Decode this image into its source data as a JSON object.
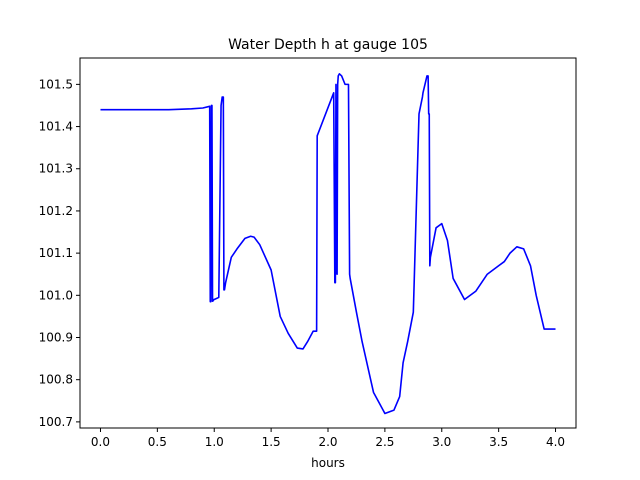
{
  "chart_data": {
    "type": "line",
    "title": "Water Depth h at gauge 105",
    "xlabel": "hours",
    "ylabel": "",
    "xlim": [
      -0.18,
      4.18
    ],
    "ylim": [
      100.6855,
      101.5625
    ],
    "xticks": [
      0.0,
      0.5,
      1.0,
      1.5,
      2.0,
      2.5,
      3.0,
      3.5,
      4.0
    ],
    "xtick_labels": [
      "0.0",
      "0.5",
      "1.0",
      "1.5",
      "2.0",
      "2.5",
      "3.0",
      "3.5",
      "4.0"
    ],
    "yticks": [
      100.7,
      100.8,
      100.9,
      101.0,
      101.1,
      101.2,
      101.3,
      101.4,
      101.5
    ],
    "ytick_labels": [
      "100.7",
      "100.8",
      "100.9",
      "101.0",
      "101.1",
      "101.2",
      "101.3",
      "101.4",
      "101.5"
    ],
    "grid": false,
    "legend": "none",
    "line_color": "#0000ff",
    "series": [
      {
        "x": [
          0.0,
          0.2,
          0.4,
          0.6,
          0.8,
          0.9,
          0.96,
          0.965,
          0.97,
          0.975,
          0.98,
          0.985,
          0.99,
          0.995,
          1.0,
          1.04,
          1.06,
          1.065,
          1.07,
          1.08,
          1.085,
          1.09,
          1.1,
          1.15,
          1.2,
          1.27,
          1.32,
          1.35,
          1.4,
          1.5,
          1.58,
          1.65,
          1.73,
          1.78,
          1.82,
          1.87,
          1.9,
          1.905,
          2.05,
          2.06,
          2.065,
          2.07,
          2.075,
          2.08,
          2.085,
          2.09,
          2.1,
          2.12,
          2.15,
          2.18,
          2.19,
          2.195,
          2.25,
          2.3,
          2.4,
          2.5,
          2.58,
          2.63,
          2.66,
          2.7,
          2.75,
          2.8,
          2.83,
          2.835,
          2.87,
          2.88,
          2.885,
          2.89,
          2.895,
          2.9,
          2.95,
          3.0,
          3.05,
          3.1,
          3.2,
          3.3,
          3.4,
          3.5,
          3.55,
          3.6,
          3.66,
          3.72,
          3.78,
          3.83,
          3.9,
          4.0
        ],
        "y": [
          101.44,
          101.44,
          101.44,
          101.44,
          101.442,
          101.444,
          101.448,
          100.985,
          100.985,
          101.45,
          101.45,
          100.986,
          100.987,
          100.99,
          100.99,
          100.995,
          101.45,
          101.46,
          101.47,
          101.47,
          101.013,
          101.013,
          101.03,
          101.09,
          101.11,
          101.135,
          101.14,
          101.138,
          101.12,
          101.06,
          100.95,
          100.91,
          100.875,
          100.873,
          100.89,
          100.915,
          100.915,
          101.378,
          101.48,
          101.03,
          101.03,
          101.5,
          101.06,
          101.05,
          101.5,
          101.52,
          101.525,
          101.52,
          101.5,
          101.5,
          101.05,
          101.04,
          100.96,
          100.89,
          100.77,
          100.72,
          100.728,
          100.76,
          100.84,
          100.89,
          100.96,
          101.43,
          101.47,
          101.48,
          101.52,
          101.52,
          101.43,
          101.43,
          101.07,
          101.09,
          101.16,
          101.17,
          101.13,
          101.04,
          100.99,
          101.01,
          101.05,
          101.07,
          101.08,
          101.1,
          101.115,
          101.11,
          101.07,
          101.0,
          100.92,
          100.92
        ]
      }
    ]
  }
}
